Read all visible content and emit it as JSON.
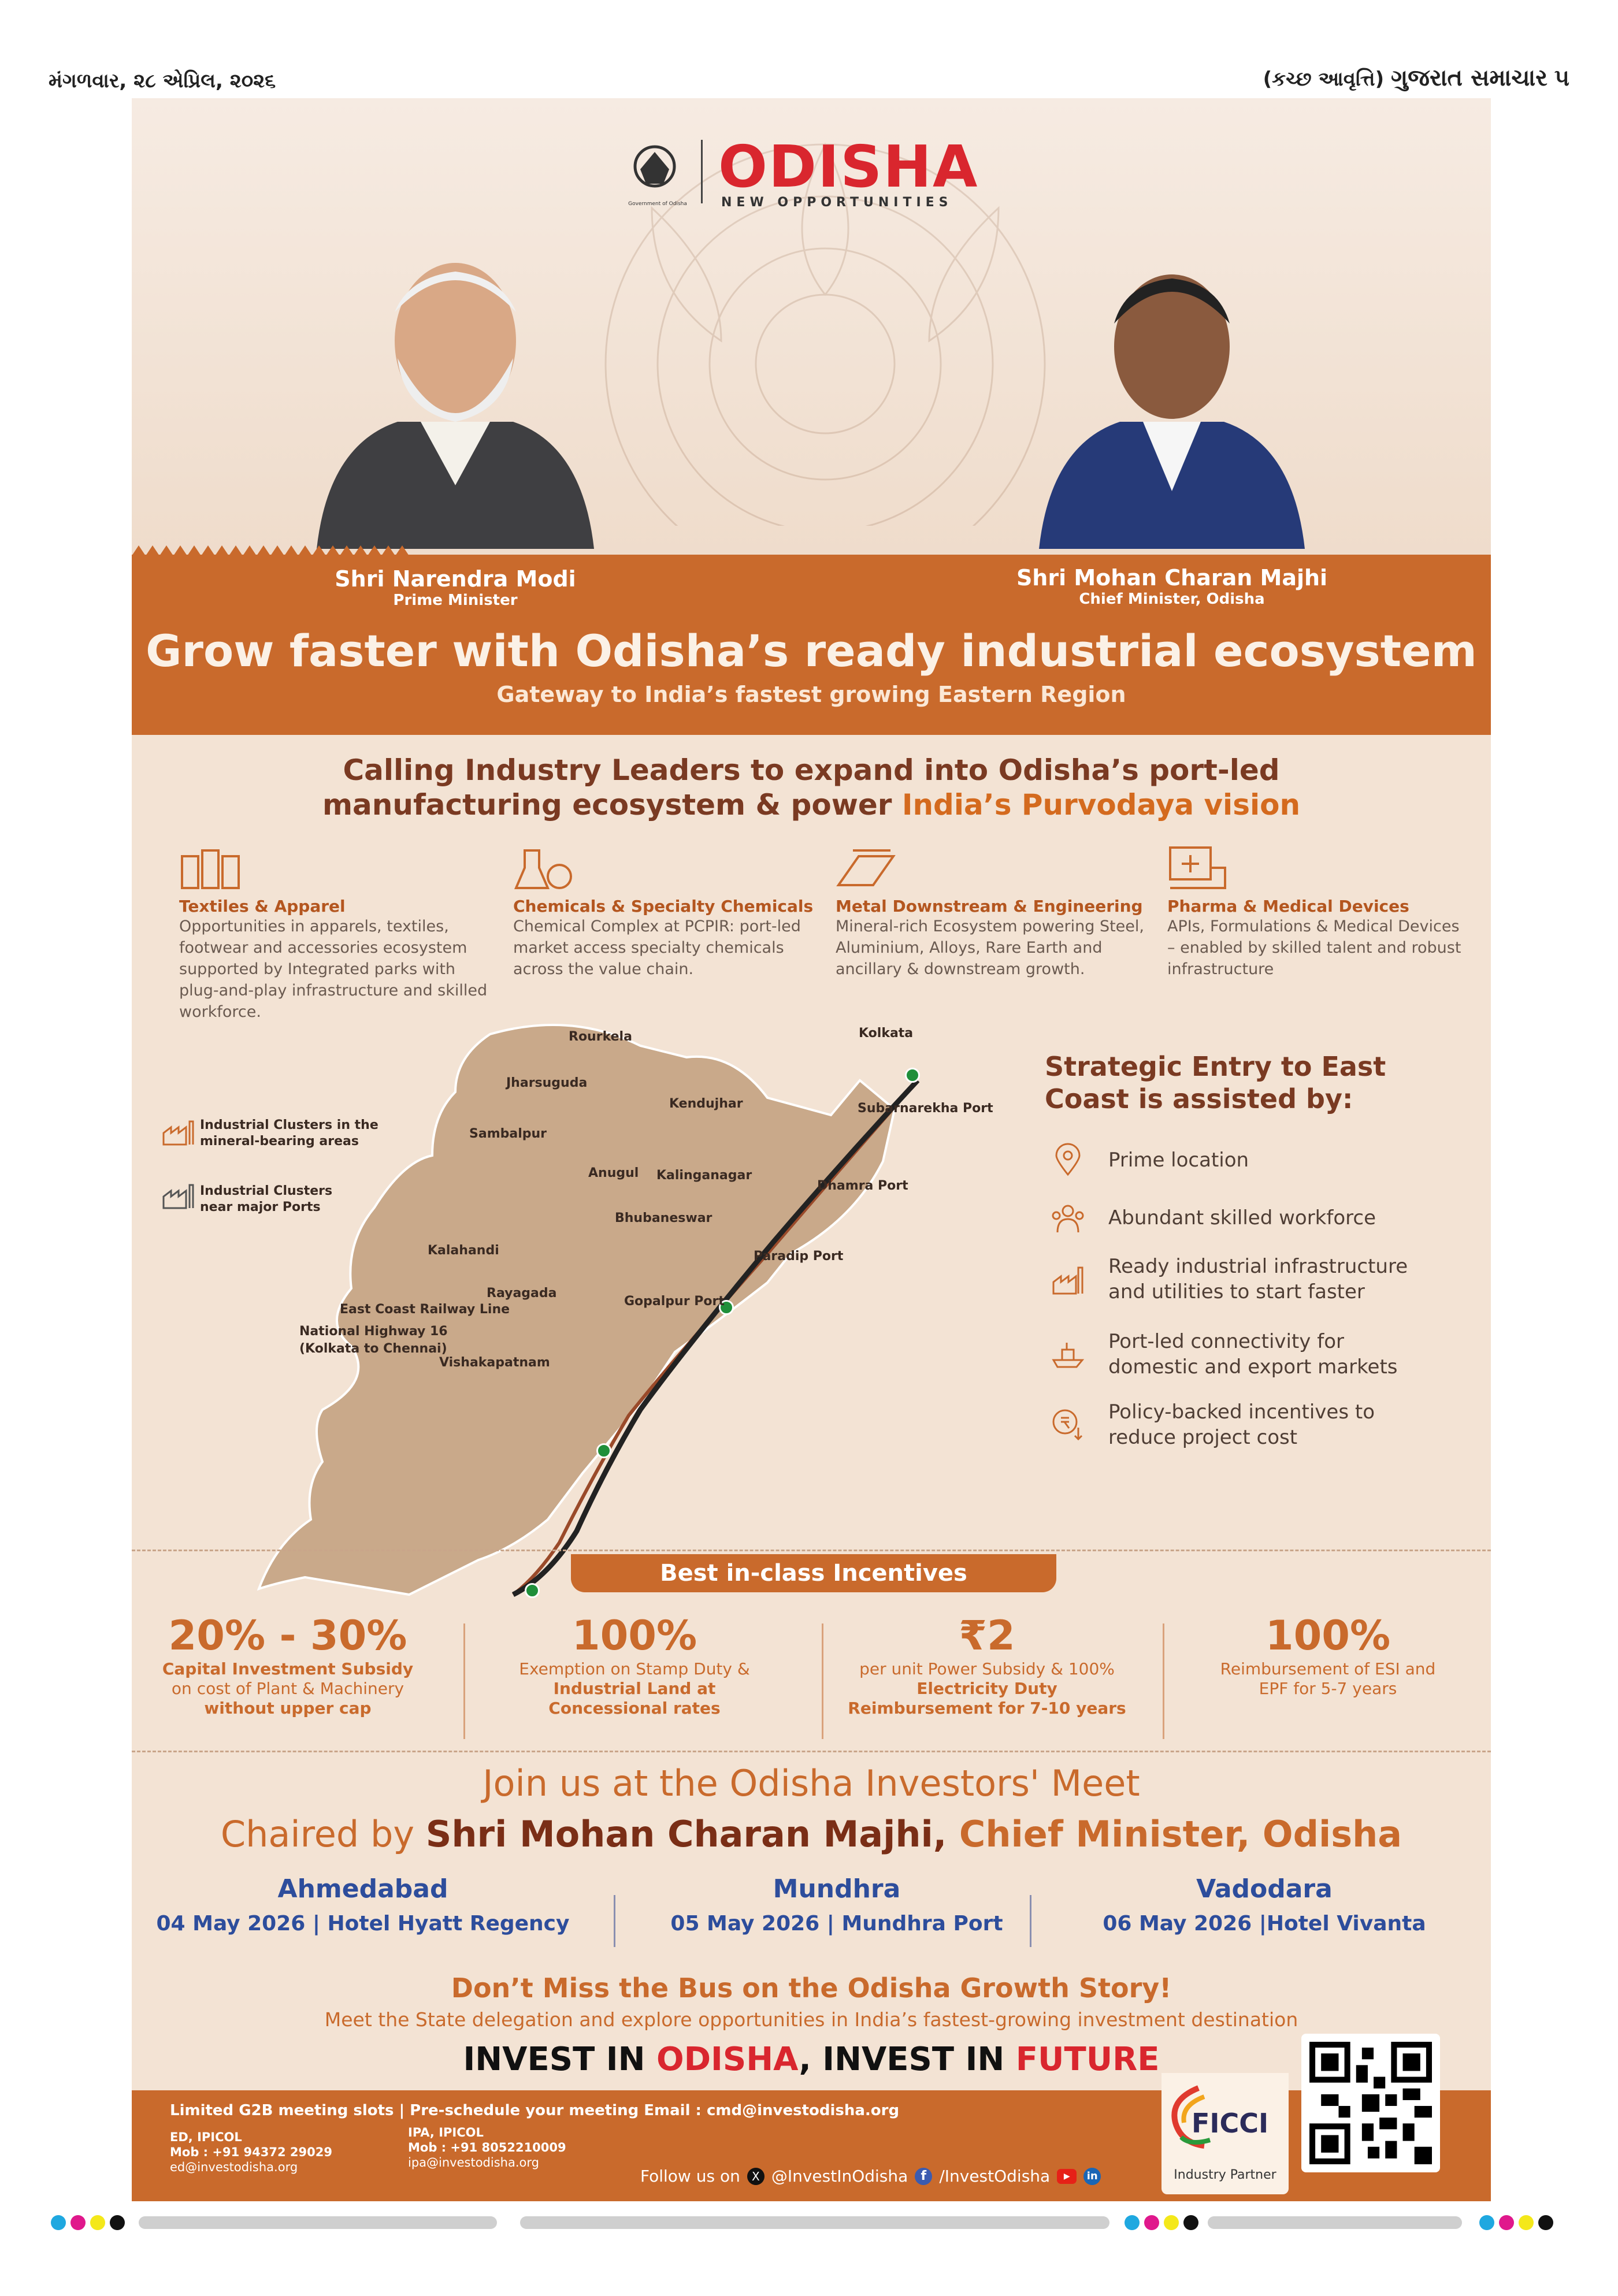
{
  "header": {
    "date_line": "મંગળવાર, ૨૮ એપ્રિલ, ૨૦૨૬",
    "edition_line": "(કચ્છ આવૃત્તિ)",
    "paper_name": "ગુજરાત સમાચાર",
    "page_no": "૫"
  },
  "brand": {
    "name": "ODISHA",
    "tagline": "NEW OPPORTUNITIES",
    "emblem_caption": "Government of Odisha"
  },
  "people": [
    {
      "name": "Shri Narendra Modi",
      "title": "Prime Minister"
    },
    {
      "name": "Shri Mohan Charan Majhi",
      "title": "Chief Minister, Odisha"
    }
  ],
  "headline": "Grow faster with Odisha’s ready industrial ecosystem",
  "subheadline": "Gateway to India’s fastest growing Eastern Region",
  "calling": {
    "line1": "Calling Industry Leaders to expand into Odisha’s port-led",
    "line2a": "manufacturing ecosystem & power ",
    "line2b": "India’s Purvodaya vision"
  },
  "industries": [
    {
      "icon": "textile-icon",
      "title": "Textiles & Apparel",
      "text": "Opportunities in apparels, textiles, footwear and accessories ecosystem supported by Integrated  parks with plug-and-play infrastructure and skilled workforce."
    },
    {
      "icon": "chemical-flask-icon",
      "title": "Chemicals & Specialty Chemicals",
      "text": "Chemical Complex at PCPIR: port-led market access specialty chemicals across the value chain."
    },
    {
      "icon": "metal-beam-icon",
      "title": "Metal Downstream & Engineering",
      "text": "Mineral-rich Ecosystem powering Steel, Aluminium, Alloys, Rare Earth and ancillary & downstream growth."
    },
    {
      "icon": "medical-device-icon",
      "title": "Pharma & Medical Devices",
      "text": "APIs, Formulations & Medical Devices – enabled by skilled talent and robust infrastructure"
    }
  ],
  "map": {
    "legend_mineral": "Industrial Clusters in the mineral-bearing areas",
    "legend_ports": "Industrial Clusters near major Ports",
    "places": {
      "rourkela": "Rourkela",
      "jharsuguda": "Jharsuguda",
      "kendujhar": "Kendujhar",
      "sambalpur": "Sambalpur",
      "anugul": "Anugul",
      "kalinganagar": "Kalinganagar",
      "bhubaneswar": "Bhubaneswar",
      "kalahandi": "Kalahandi",
      "rayagada": "Rayagada",
      "kolkata": "Kolkata",
      "subarnarekha": "Subarnarekha Port",
      "dhamra": "Dhamra Port",
      "paradip": "Paradip Port",
      "gopalpur": "Gopalpur Port",
      "vishakapatnam": "Vishakapatnam",
      "railway": "East Coast Railway Line",
      "highway": "National Highway 16 (Kolkata to Chennai)"
    }
  },
  "entry": {
    "title": "Strategic Entry to East Coast is assisted by:",
    "items": [
      {
        "icon": "location-pin-icon",
        "text": "Prime location"
      },
      {
        "icon": "workforce-icon",
        "text": "Abundant skilled workforce"
      },
      {
        "icon": "factory-icon",
        "text": "Ready industrial infrastructure and utilities to start faster"
      },
      {
        "icon": "ship-icon",
        "text": "Port-led connectivity for domestic and export markets"
      },
      {
        "icon": "incentive-coin-icon",
        "text": "Policy-backed incentives to reduce project cost"
      }
    ]
  },
  "incentives": {
    "title": "Best in-class Incentives",
    "items": [
      {
        "big": "20% - 30%",
        "l1": "Capital Investment Subsidy",
        "l2": "on cost of Plant & Machinery",
        "l3": "without upper cap"
      },
      {
        "big": "100%",
        "l1": "Exemption on  Stamp Duty &",
        "l2": "Industrial Land at",
        "l3": "Concessional rates"
      },
      {
        "big": "₹2",
        "l1": "per unit Power Subsidy & 100%",
        "l2": "Electricity Duty",
        "l3": "Reimbursement for 7-10 years"
      },
      {
        "big": "100%",
        "l1": "Reimbursement of ESI and",
        "l2": "EPF for 5-7 years",
        "l3": ""
      }
    ]
  },
  "meet": {
    "join": "Join us at the Odisha Investors' Meet",
    "chaired_a": "Chaired by ",
    "chaired_b": "Shri Mohan Charan Majhi, ",
    "chaired_c": "Chief Minister, Odisha",
    "venues": [
      {
        "city": "Ahmedabad",
        "date": "04 May 2026 | Hotel Hyatt Regency"
      },
      {
        "city": "Mundhra",
        "date": "05 May 2026 | Mundhra Port"
      },
      {
        "city": "Vadodara",
        "date": "06 May 2026 |Hotel Vivanta"
      }
    ],
    "dont_miss": "Don’t Miss the Bus on the Odisha Growth Story!",
    "meet_line": "Meet  the State delegation and explore opportunities in India’s fastest-growing investment destination",
    "invest_a": "INVEST IN ",
    "invest_b": "ODISHA",
    "invest_c": ", INVEST IN ",
    "invest_d": "FUTURE"
  },
  "footer": {
    "slots": "Limited G2B meeting slots | Pre-schedule your meeting Email : cmd@investodisha.org",
    "c1_title": "ED, IPICOL",
    "c1_mob": "Mob : +91 94372 29029",
    "c1_mail": "ed@investodisha.org",
    "c2_title": "IPA, IPICOL",
    "c2_mob": "Mob : +91 8052210009",
    "c2_mail": "ipa@investodisha.org",
    "follow": "Follow us on",
    "x_handle": "@InvestInOdisha",
    "fb_handle": "/InvestOdisha",
    "ficci": "FICCI",
    "ficci_sub": "Industry Partner"
  },
  "colors": {
    "orange": "#c96a2c",
    "brown": "#7a2e16",
    "blue": "#2d4d9c",
    "red": "#d9262e"
  }
}
